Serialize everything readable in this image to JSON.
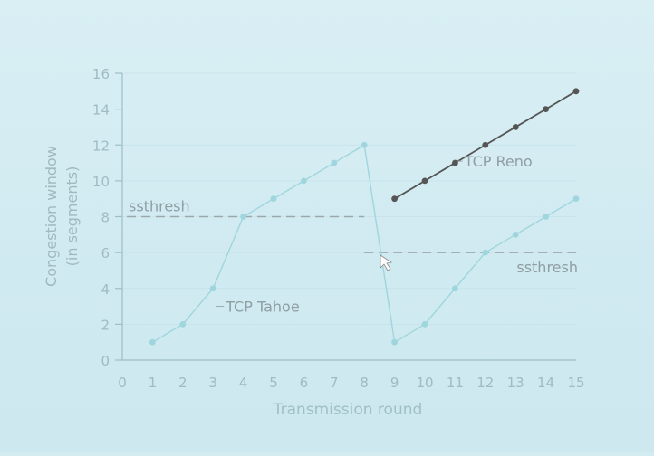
{
  "chart_data": {
    "type": "line",
    "title": "",
    "xlabel": "Transmission round",
    "ylabel": "Congestion window (in segments)",
    "ylabel_lines": [
      "Congestion window",
      "(in segments)"
    ],
    "xlim": [
      0,
      15
    ],
    "ylim": [
      0,
      16
    ],
    "x_ticks": [
      0,
      1,
      2,
      3,
      4,
      5,
      6,
      7,
      8,
      9,
      10,
      11,
      12,
      13,
      14,
      15
    ],
    "y_ticks": [
      0,
      2,
      4,
      6,
      8,
      10,
      12,
      14,
      16
    ],
    "grid": true,
    "series": [
      {
        "name": "TCP Tahoe",
        "color": "#9fd6dd",
        "x": [
          1,
          2,
          3,
          4,
          5,
          6,
          7,
          8,
          9,
          10,
          11,
          12,
          13,
          14,
          15
        ],
        "y": [
          1,
          2,
          4,
          8,
          9,
          10,
          11,
          12,
          1,
          2,
          4,
          6,
          7,
          8,
          9
        ]
      },
      {
        "name": "TCP Reno",
        "color": "#555555",
        "x": [
          9,
          10,
          11,
          12,
          13,
          14,
          15
        ],
        "y": [
          9,
          10,
          11,
          12,
          13,
          14,
          15
        ]
      }
    ],
    "thresholds": [
      {
        "label": "ssthresh",
        "y": 8,
        "x_range": [
          0,
          8
        ]
      },
      {
        "label": "ssthresh",
        "y": 6,
        "x_range": [
          8,
          15
        ]
      }
    ]
  }
}
